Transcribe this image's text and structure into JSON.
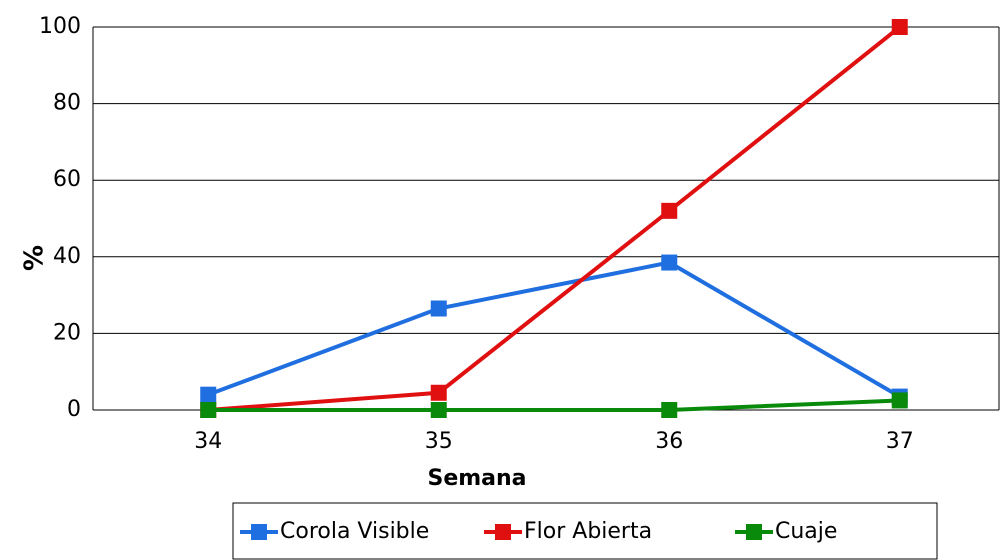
{
  "chart_data": {
    "type": "line",
    "x_label": "Semana",
    "y_label": "%",
    "categories": [
      "34",
      "35",
      "36",
      "37"
    ],
    "series": [
      {
        "name": "Corola Visible",
        "color": "#1f6fe0",
        "values": [
          4,
          26.5,
          38.5,
          3.5
        ]
      },
      {
        "name": "Flor Abierta",
        "color": "#e01010",
        "values": [
          0,
          4.5,
          52,
          100
        ]
      },
      {
        "name": "Cuaje",
        "color": "#0a8a0a",
        "values": [
          0,
          0,
          0,
          2.5
        ]
      }
    ],
    "ylim": [
      0,
      100
    ],
    "yticks": [
      0,
      20,
      40,
      60,
      80,
      100
    ],
    "grid": true,
    "legend": "bottom"
  }
}
